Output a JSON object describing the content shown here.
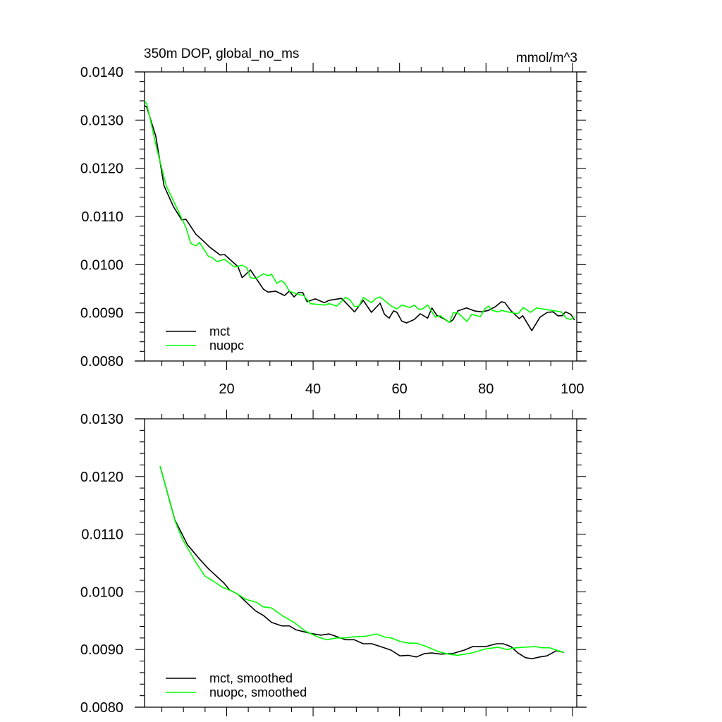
{
  "chart_data": [
    {
      "type": "line",
      "title_left": "350m DOP, global_no_ms",
      "title_right": "mmol/m^3",
      "xlabel": "",
      "ylabel": "",
      "xlim": [
        1,
        101
      ],
      "ylim": [
        0.008,
        0.014
      ],
      "x_ticks": [
        20,
        40,
        60,
        80,
        100
      ],
      "x_tick_labels": [
        "20",
        "40",
        "60",
        "80",
        "100"
      ],
      "y_ticks": [
        0.008,
        0.009,
        0.01,
        0.011,
        0.012,
        0.013,
        0.014
      ],
      "y_tick_labels": [
        "0.0080",
        "0.0090",
        "0.0100",
        "0.0110",
        "0.0120",
        "0.0130",
        "0.0140"
      ],
      "grid": false,
      "legend_position": "bottom-left",
      "series": [
        {
          "name": "mct",
          "color": "#000000",
          "points": [
            [
              1,
              0.0133
            ],
            [
              1.5,
              0.01327
            ],
            [
              3.6,
              0.01267
            ],
            [
              5.5,
              0.01164
            ],
            [
              7.7,
              0.0112
            ],
            [
              9.6,
              0.01093
            ],
            [
              10.6,
              0.01094
            ],
            [
              12.9,
              0.01063
            ],
            [
              14.5,
              0.0105
            ],
            [
              16.1,
              0.01036
            ],
            [
              18.5,
              0.0102
            ],
            [
              19.5,
              0.01021
            ],
            [
              22.6,
              0.00996
            ],
            [
              23.6,
              0.00973
            ],
            [
              25.5,
              0.00989
            ],
            [
              28.5,
              0.00949
            ],
            [
              29.6,
              0.00943
            ],
            [
              31.3,
              0.00945
            ],
            [
              33.4,
              0.00936
            ],
            [
              34.5,
              0.00945
            ],
            [
              35.6,
              0.00933
            ],
            [
              36.6,
              0.00942
            ],
            [
              37.6,
              0.00942
            ],
            [
              38.6,
              0.00923
            ],
            [
              40.5,
              0.00929
            ],
            [
              42.6,
              0.00921
            ],
            [
              43.7,
              0.00926
            ],
            [
              46.6,
              0.0093
            ],
            [
              49.6,
              0.00902
            ],
            [
              51.6,
              0.00926
            ],
            [
              53.5,
              0.00901
            ],
            [
              55.5,
              0.0092
            ],
            [
              56.5,
              0.00897
            ],
            [
              57.6,
              0.00889
            ],
            [
              58.6,
              0.00904
            ],
            [
              59.4,
              0.00901
            ],
            [
              60.5,
              0.00883
            ],
            [
              61.6,
              0.00879
            ],
            [
              63.4,
              0.00886
            ],
            [
              64.8,
              0.00898
            ],
            [
              66.5,
              0.00889
            ],
            [
              67.5,
              0.0091
            ],
            [
              68.6,
              0.00895
            ],
            [
              70.2,
              0.00888
            ],
            [
              71.6,
              0.0088
            ],
            [
              72.4,
              0.00886
            ],
            [
              73.5,
              0.00904
            ],
            [
              75.5,
              0.0091
            ],
            [
              77.3,
              0.00904
            ],
            [
              79.0,
              0.00902
            ],
            [
              80.6,
              0.00905
            ],
            [
              82.2,
              0.00913
            ],
            [
              83.6,
              0.00923
            ],
            [
              84.4,
              0.00921
            ],
            [
              85.7,
              0.00905
            ],
            [
              87.7,
              0.00888
            ],
            [
              88.5,
              0.00894
            ],
            [
              90.6,
              0.00863
            ],
            [
              92.5,
              0.00891
            ],
            [
              94.2,
              0.00901
            ],
            [
              95.5,
              0.00902
            ],
            [
              96.6,
              0.00894
            ],
            [
              97.6,
              0.00894
            ],
            [
              98.4,
              0.00902
            ],
            [
              99.6,
              0.00897
            ],
            [
              100.5,
              0.00885
            ]
          ]
        },
        {
          "name": "nuopc",
          "color": "#00ff00",
          "points": [
            [
              1,
              0.0134
            ],
            [
              1.5,
              0.01334
            ],
            [
              3.9,
              0.01238
            ],
            [
              6.0,
              0.01164
            ],
            [
              7.7,
              0.01132
            ],
            [
              10.6,
              0.01077
            ],
            [
              11.7,
              0.01044
            ],
            [
              12.9,
              0.01039
            ],
            [
              13.7,
              0.01046
            ],
            [
              15.8,
              0.01017
            ],
            [
              16.6,
              0.01015
            ],
            [
              17.8,
              0.01006
            ],
            [
              19.5,
              0.01011
            ],
            [
              21.8,
              0.00995
            ],
            [
              23.6,
              0.00999
            ],
            [
              24.7,
              0.00993
            ],
            [
              25.5,
              0.00973
            ],
            [
              26.7,
              0.00971
            ],
            [
              28.5,
              0.00981
            ],
            [
              29.6,
              0.00977
            ],
            [
              30.4,
              0.0098
            ],
            [
              31.6,
              0.00961
            ],
            [
              32.6,
              0.00967
            ],
            [
              33.4,
              0.00962
            ],
            [
              34.5,
              0.00945
            ],
            [
              36.6,
              0.00938
            ],
            [
              37.8,
              0.00936
            ],
            [
              39.4,
              0.00919
            ],
            [
              42.6,
              0.00916
            ],
            [
              43.7,
              0.00919
            ],
            [
              45.5,
              0.00914
            ],
            [
              47.5,
              0.00932
            ],
            [
              48.5,
              0.00927
            ],
            [
              49.6,
              0.00913
            ],
            [
              50.6,
              0.00914
            ],
            [
              51.6,
              0.00932
            ],
            [
              53.5,
              0.00921
            ],
            [
              54.5,
              0.0093
            ],
            [
              55.5,
              0.00933
            ],
            [
              58.1,
              0.00914
            ],
            [
              59.4,
              0.00908
            ],
            [
              60.5,
              0.00916
            ],
            [
              62.4,
              0.00911
            ],
            [
              63.4,
              0.00916
            ],
            [
              64.5,
              0.00907
            ],
            [
              65.3,
              0.00908
            ],
            [
              66.5,
              0.00916
            ],
            [
              68.3,
              0.00891
            ],
            [
              69.4,
              0.00894
            ],
            [
              71.6,
              0.0088
            ],
            [
              72.4,
              0.009
            ],
            [
              73.5,
              0.009
            ],
            [
              75.6,
              0.00882
            ],
            [
              76.7,
              0.00897
            ],
            [
              78.7,
              0.00892
            ],
            [
              79.7,
              0.00908
            ],
            [
              80.6,
              0.00914
            ],
            [
              81.4,
              0.00905
            ],
            [
              82.8,
              0.00902
            ],
            [
              83.6,
              0.00905
            ],
            [
              85.0,
              0.00902
            ],
            [
              87.4,
              0.00898
            ],
            [
              88.6,
              0.00911
            ],
            [
              90.3,
              0.00901
            ],
            [
              91.7,
              0.0091
            ],
            [
              97.4,
              0.00902
            ],
            [
              98.6,
              0.00889
            ],
            [
              99.6,
              0.00886
            ],
            [
              100.5,
              0.00892
            ]
          ]
        }
      ]
    },
    {
      "type": "line",
      "xlabel": "",
      "ylabel": "",
      "xlim": [
        1,
        101
      ],
      "ylim": [
        0.008,
        0.013
      ],
      "x_ticks": [
        20,
        40,
        60,
        80,
        100
      ],
      "y_ticks": [
        0.008,
        0.009,
        0.01,
        0.011,
        0.012,
        0.013
      ],
      "y_tick_labels": [
        "0.0080",
        "0.0090",
        "0.0100",
        "0.0110",
        "0.0120",
        "0.0130"
      ],
      "grid": false,
      "legend_position": "bottom-left",
      "series": [
        {
          "name": "mct, smoothed",
          "color": "#000000",
          "points": [
            [
              4.6,
              0.01218
            ],
            [
              8.0,
              0.01125
            ],
            [
              10.9,
              0.01082
            ],
            [
              13.7,
              0.01057
            ],
            [
              15.8,
              0.0104
            ],
            [
              19.4,
              0.01015
            ],
            [
              20.7,
              0.01003
            ],
            [
              22.6,
              0.00996
            ],
            [
              24.4,
              0.00983
            ],
            [
              26.7,
              0.00967
            ],
            [
              28.5,
              0.00959
            ],
            [
              30.4,
              0.00947
            ],
            [
              32.8,
              0.00941
            ],
            [
              34.5,
              0.00941
            ],
            [
              36.1,
              0.00934
            ],
            [
              39.4,
              0.00928
            ],
            [
              41.8,
              0.00925
            ],
            [
              43.7,
              0.00927
            ],
            [
              47.5,
              0.00917
            ],
            [
              49.5,
              0.00917
            ],
            [
              51.6,
              0.0091
            ],
            [
              53.6,
              0.0091
            ],
            [
              56.0,
              0.00904
            ],
            [
              58.0,
              0.00899
            ],
            [
              60.1,
              0.00889
            ],
            [
              62.0,
              0.0089
            ],
            [
              63.9,
              0.00887
            ],
            [
              65.8,
              0.00893
            ],
            [
              67.4,
              0.00894
            ],
            [
              69.5,
              0.00892
            ],
            [
              72.3,
              0.00893
            ],
            [
              75.0,
              0.00899
            ],
            [
              76.9,
              0.00905
            ],
            [
              79.9,
              0.00905
            ],
            [
              82.4,
              0.0091
            ],
            [
              84.0,
              0.0091
            ],
            [
              85.8,
              0.00905
            ],
            [
              87.4,
              0.00894
            ],
            [
              89.1,
              0.00886
            ],
            [
              90.6,
              0.00884
            ],
            [
              92.4,
              0.00887
            ],
            [
              94.1,
              0.00889
            ],
            [
              96.3,
              0.00898
            ],
            [
              98.1,
              0.00895
            ]
          ]
        },
        {
          "name": "nuopc, smoothed",
          "color": "#00ff00",
          "points": [
            [
              4.6,
              0.01218
            ],
            [
              8.0,
              0.01124
            ],
            [
              9.8,
              0.01091
            ],
            [
              12.9,
              0.01051
            ],
            [
              15.0,
              0.01027
            ],
            [
              16.6,
              0.0102
            ],
            [
              19.0,
              0.01008
            ],
            [
              21.0,
              0.01002
            ],
            [
              22.6,
              0.00996
            ],
            [
              24.4,
              0.00987
            ],
            [
              26.8,
              0.00982
            ],
            [
              28.5,
              0.00974
            ],
            [
              30.4,
              0.00972
            ],
            [
              32.8,
              0.00959
            ],
            [
              35.6,
              0.00947
            ],
            [
              38.2,
              0.00932
            ],
            [
              41.0,
              0.00922
            ],
            [
              43.1,
              0.00917
            ],
            [
              45.4,
              0.0092
            ],
            [
              47.2,
              0.0092
            ],
            [
              49.5,
              0.00922
            ],
            [
              52.2,
              0.00923
            ],
            [
              54.6,
              0.00927
            ],
            [
              56.8,
              0.00921
            ],
            [
              58.1,
              0.0092
            ],
            [
              60.1,
              0.00914
            ],
            [
              62.2,
              0.00911
            ],
            [
              63.9,
              0.00911
            ],
            [
              66.3,
              0.00905
            ],
            [
              68.8,
              0.00897
            ],
            [
              71.2,
              0.00892
            ],
            [
              73.5,
              0.0089
            ],
            [
              76.7,
              0.00894
            ],
            [
              79.9,
              0.00901
            ],
            [
              82.8,
              0.00904
            ],
            [
              84.8,
              0.009
            ],
            [
              86.9,
              0.00903
            ],
            [
              91.4,
              0.00905
            ],
            [
              92.9,
              0.00903
            ],
            [
              94.7,
              0.00903
            ],
            [
              96.3,
              0.00899
            ],
            [
              98.1,
              0.00895
            ]
          ]
        }
      ]
    }
  ]
}
